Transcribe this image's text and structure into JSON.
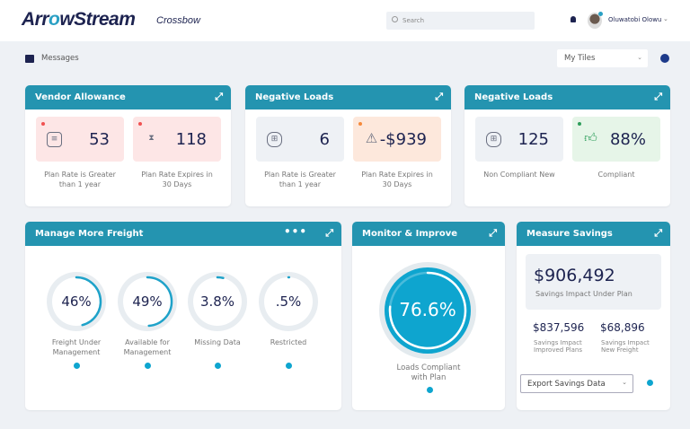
{
  "header": {
    "logo": "ArrowStream",
    "app_name": "Crossbow",
    "search_placeholder": "Search",
    "user_name": "Oluwatobi Olowu"
  },
  "toolbar": {
    "messages": "Messages",
    "tiles_select": "My Tiles"
  },
  "tiles": {
    "vendor": {
      "title": "Vendor Allowance",
      "items": [
        {
          "value": "53",
          "label1": "Plan Rate is Greater",
          "label2": "than 1 year"
        },
        {
          "value": "118",
          "label1": "Plan Rate Expires in",
          "label2": "30 Days"
        }
      ]
    },
    "neg1": {
      "title": "Negative Loads",
      "items": [
        {
          "value": "6",
          "label1": "Plan Rate is Greater",
          "label2": "than 1 year"
        },
        {
          "value": "-$939",
          "label1": "Plan Rate Expires in",
          "label2": "30 Days"
        }
      ]
    },
    "neg2": {
      "title": "Negative Loads",
      "items": [
        {
          "value": "125",
          "label1": "Non Compliant New"
        },
        {
          "value": "88%",
          "label1": "Compliant"
        }
      ]
    },
    "freight": {
      "title": "Manage More Freight",
      "items": [
        {
          "value": "46%",
          "pct": 46,
          "label1": "Freight Under",
          "label2": "Management"
        },
        {
          "value": "49%",
          "pct": 49,
          "label1": "Available for",
          "label2": "Management"
        },
        {
          "value": "3.8%",
          "pct": 3.8,
          "label1": "Missing Data"
        },
        {
          "value": ".5%",
          "pct": 0.5,
          "label1": "Restricted"
        }
      ]
    },
    "monitor": {
      "title": "Monitor & Improve",
      "value": "76.6%",
      "pct": 76.6,
      "label1": "Loads Compliant",
      "label2": "with Plan"
    },
    "savings": {
      "title": "Measure Savings",
      "main_value": "$906,492",
      "main_label": "Savings Impact Under Plan",
      "sub": [
        {
          "value": "$837,596",
          "label1": "Savings Impact",
          "label2": "Improved Plans"
        },
        {
          "value": "$68,896",
          "label1": "Savings Impact",
          "label2": "New Freight"
        }
      ],
      "export": "Export Savings Data"
    }
  },
  "colors": {
    "accent": "#2494b0",
    "red_bg": "#fde6e6",
    "orange_bg": "#fde8dc",
    "gray_bg": "#eef1f5",
    "green_bg": "#e6f5e8"
  }
}
